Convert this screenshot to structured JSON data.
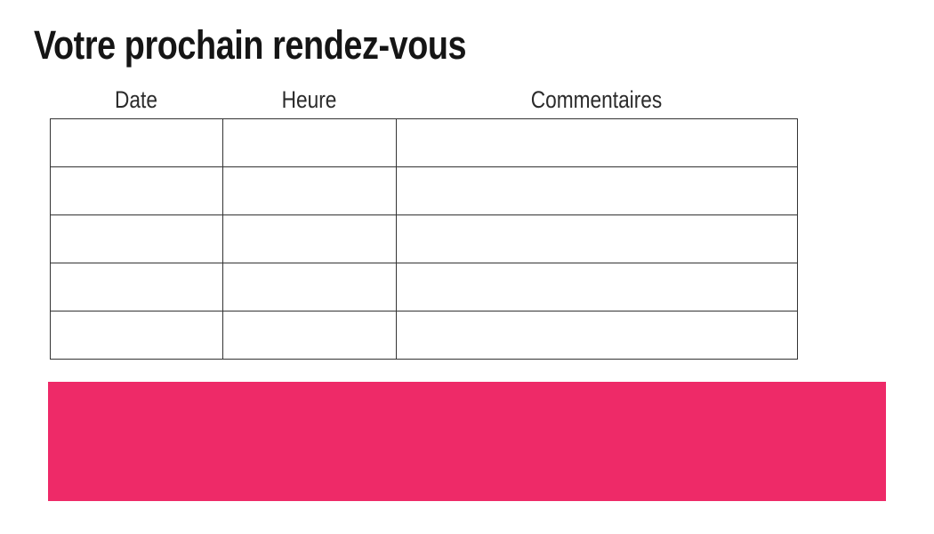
{
  "page": {
    "title": "Votre prochain rendez-vous",
    "background_color": "#ffffff"
  },
  "table": {
    "headers": [
      {
        "label": "Date"
      },
      {
        "label": "Heure"
      },
      {
        "label": "Commentaires"
      }
    ],
    "row_count": 5,
    "rows": [
      [
        "",
        "",
        ""
      ],
      [
        "",
        "",
        ""
      ],
      [
        "",
        "",
        ""
      ],
      [
        "",
        "",
        ""
      ],
      [
        "",
        "",
        ""
      ]
    ],
    "border_color": "#333333"
  },
  "banner": {
    "color": "#EE2A68"
  },
  "colors": {
    "title_text": "#151515",
    "header_text": "#2b2b2b"
  }
}
